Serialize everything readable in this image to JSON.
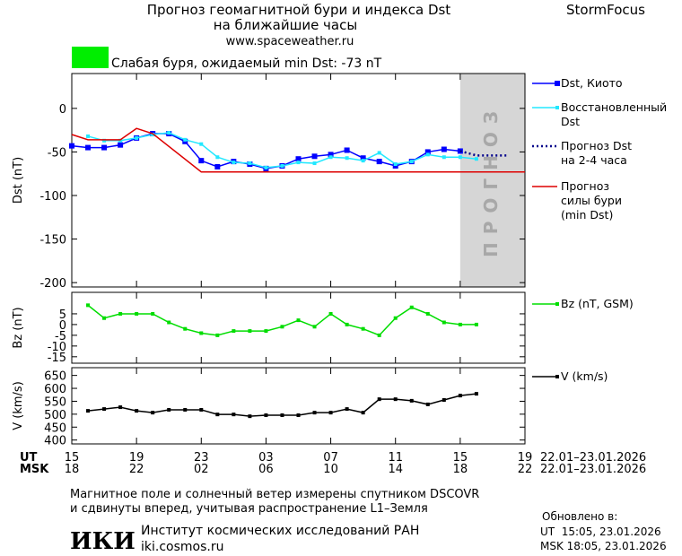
{
  "header": {
    "title": "Прогноз геомагнитной бури и индекса Dst",
    "subtitle": "на ближайшие часы",
    "url": "www.spaceweather.ru",
    "brand": "StormFocus"
  },
  "status": {
    "text": "Слабая буря, ожидаемый min Dst: -73 nT",
    "color": "#00ee00"
  },
  "chart_data": [
    {
      "type": "line",
      "ylabel": "Dst (nT)",
      "xlim": [
        0,
        28
      ],
      "xticks": [
        0,
        4,
        8,
        12,
        16,
        20,
        24,
        28
      ],
      "ylim": [
        -205,
        40
      ],
      "yticks": [
        0,
        -50,
        -100,
        -150,
        -200
      ],
      "forecast_xlim": [
        24,
        28
      ],
      "forecast_label": "ПРОГНОЗ",
      "series": [
        {
          "name": "Dst, Киото",
          "color": "#0000ff",
          "marker": "square",
          "style": "solid",
          "x": [
            0,
            1,
            2,
            3,
            4,
            5,
            6,
            7,
            8,
            9,
            10,
            11,
            12,
            13,
            14,
            15,
            16,
            17,
            18,
            19,
            20,
            21,
            22,
            23,
            24
          ],
          "values": [
            -43,
            -45,
            -45,
            -42,
            -34,
            -29,
            -29,
            -38,
            -60,
            -67,
            -61,
            -64,
            -69,
            -66,
            -58,
            -55,
            -53,
            -48,
            -57,
            -61,
            -66,
            -61,
            -50,
            -47,
            -49
          ]
        },
        {
          "name": "Восстановленный\nDst",
          "color": "#22e8ff",
          "marker": "smallsquare",
          "style": "solid",
          "x": [
            1,
            2,
            3,
            4,
            5,
            6,
            7,
            8,
            9,
            10,
            11,
            12,
            13,
            14,
            15,
            16,
            17,
            18,
            19,
            20,
            21,
            22,
            23,
            24,
            25
          ],
          "values": [
            -32,
            -37,
            -37,
            -34,
            -30,
            -28,
            -36,
            -41,
            -56,
            -62,
            -63,
            -68,
            -66,
            -62,
            -63,
            -56,
            -57,
            -60,
            -51,
            -64,
            -61,
            -53,
            -56,
            -56,
            -58
          ]
        },
        {
          "name": "Прогноз Dst\nна 2-4 часа",
          "color": "#00008b",
          "marker": "none",
          "style": "dotted",
          "x": [
            24,
            25,
            26,
            27
          ],
          "values": [
            -49,
            -54,
            -54,
            -54
          ]
        },
        {
          "name": "Прогноз\nсилы бури\n(min Dst)",
          "color": "#dd0000",
          "marker": "none",
          "style": "solid",
          "x": [
            0,
            1,
            3,
            4,
            5,
            8,
            28
          ],
          "values": [
            -30,
            -36,
            -36,
            -23,
            -29,
            -73,
            -73
          ]
        }
      ]
    },
    {
      "type": "line",
      "ylabel": "Bz (nT)",
      "xlim": [
        0,
        28
      ],
      "xticks": [
        0,
        4,
        8,
        12,
        16,
        20,
        24,
        28
      ],
      "ylim": [
        -18,
        15
      ],
      "yticks": [
        5,
        0,
        -5,
        -10,
        -15
      ],
      "series": [
        {
          "name": "Bz (nT, GSM)",
          "color": "#00dd00",
          "marker": "smallsquare",
          "style": "solid",
          "x": [
            1,
            2,
            3,
            4,
            5,
            6,
            7,
            8,
            9,
            10,
            11,
            12,
            13,
            14,
            15,
            16,
            17,
            18,
            19,
            20,
            21,
            22,
            23,
            24,
            25
          ],
          "values": [
            9,
            3,
            5,
            5,
            5,
            1,
            -2,
            -4,
            -5,
            -3,
            -3,
            -3,
            -1,
            2,
            -1,
            5,
            0,
            -2,
            -5,
            3,
            8,
            5,
            1,
            0,
            0
          ]
        }
      ]
    },
    {
      "type": "line",
      "ylabel": "V (km/s)",
      "xlim": [
        0,
        28
      ],
      "xticks": [
        {
          "value": 0,
          "label": "15"
        },
        {
          "value": 4,
          "label": "19"
        },
        {
          "value": 8,
          "label": "23"
        },
        {
          "value": 12,
          "label": "03"
        },
        {
          "value": 16,
          "label": "07"
        },
        {
          "value": 20,
          "label": "11"
        },
        {
          "value": 24,
          "label": "15"
        },
        {
          "value": 28,
          "label": "19"
        }
      ],
      "xticks_msk": [
        {
          "value": 0,
          "label": "18"
        },
        {
          "value": 4,
          "label": "22"
        },
        {
          "value": 8,
          "label": "02"
        },
        {
          "value": 12,
          "label": "06"
        },
        {
          "value": 16,
          "label": "10"
        },
        {
          "value": 20,
          "label": "14"
        },
        {
          "value": 24,
          "label": "18"
        },
        {
          "value": 28,
          "label": "22"
        }
      ],
      "xlabel": "UT",
      "xlabel_msk": "MSK",
      "date_range": "22.01–23.01.2026",
      "ylim": [
        385,
        680
      ],
      "yticks": [
        650,
        600,
        550,
        500,
        450,
        400
      ],
      "series": [
        {
          "name": "V (km/s)",
          "color": "#000000",
          "marker": "smallsquare",
          "style": "solid",
          "x": [
            1,
            2,
            3,
            4,
            5,
            6,
            7,
            8,
            9,
            10,
            11,
            12,
            13,
            14,
            15,
            16,
            17,
            18,
            19,
            20,
            21,
            22,
            23,
            24,
            25
          ],
          "values": [
            513,
            520,
            527,
            513,
            506,
            517,
            517,
            517,
            499,
            499,
            492,
            496,
            496,
            496,
            506,
            506,
            520,
            506,
            558,
            558,
            552,
            538,
            555,
            572,
            579
          ]
        }
      ]
    }
  ],
  "footer": {
    "note1": "Магнитное поле и солнечный ветер измерены спутником DSCOVR",
    "note2": "и сдвинуты вперед, учитывая распространение L1–Земля",
    "logo": "ИКИ",
    "institute": "Институт космических исследований РАН",
    "site": "iki.cosmos.ru",
    "updated": "Обновлено в:",
    "updated_ut": "UT  15:05, 23.01.2026",
    "updated_msk": "MSK 18:05, 23.01.2026"
  }
}
